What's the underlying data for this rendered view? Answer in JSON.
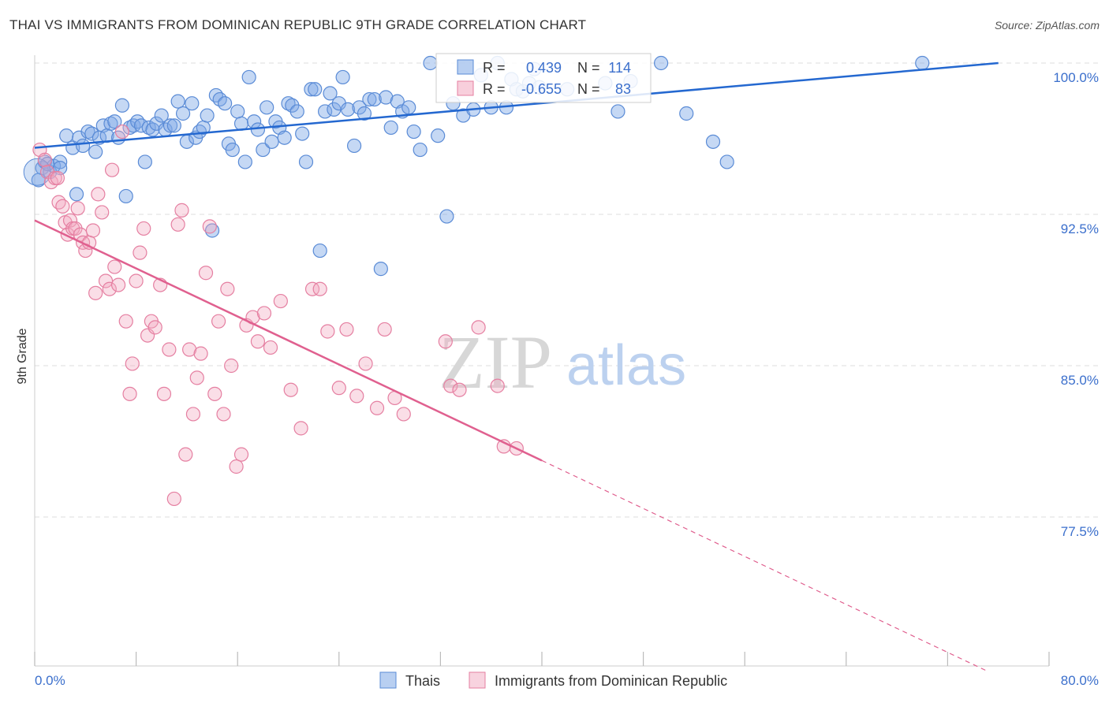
{
  "title": "THAI VS IMMIGRANTS FROM DOMINICAN REPUBLIC 9TH GRADE CORRELATION CHART",
  "source": "Source: ZipAtlas.com",
  "watermark": {
    "zip": "ZIP",
    "atlas": "atlas"
  },
  "colors": {
    "blue": "#7ea8e6",
    "blue_stroke": "#5a8bd6",
    "blue_line": "#2468d0",
    "pink": "#f2a7bf",
    "pink_stroke": "#e57fa1",
    "pink_line": "#e0608f",
    "grid": "#dddddd",
    "axis_text": "#3b6fcc"
  },
  "legend": {
    "rows": [
      {
        "series": "Thais",
        "r_label": "R =",
        "r_value": "0.439",
        "n_label": "N =",
        "n_value": "114"
      },
      {
        "series": "Immigrants from Dominican Republic",
        "r_label": "R =",
        "r_value": "-0.655",
        "n_label": "N =",
        "n_value": "83"
      }
    ]
  },
  "chart_data": {
    "type": "scatter",
    "title": "THAI VS IMMIGRANTS FROM DOMINICAN REPUBLIC 9TH GRADE CORRELATION CHART",
    "xlabel": "",
    "ylabel": "9th Grade",
    "xlim": [
      0,
      80
    ],
    "ylim": [
      70,
      101
    ],
    "x_tick_labels": [
      "0.0%",
      "80.0%"
    ],
    "y_ticks": [
      77.5,
      85.0,
      92.5,
      100.0
    ],
    "y_tick_labels": [
      "77.5%",
      "85.0%",
      "92.5%",
      "100.0%"
    ],
    "grid": true,
    "legend_position": "top-center",
    "series": [
      {
        "name": "Thais",
        "trend": {
          "x": [
            0,
            76
          ],
          "y": [
            95.8,
            100.0
          ]
        },
        "points": [
          [
            0.3,
            94.2
          ],
          [
            0.6,
            94.8
          ],
          [
            0.8,
            95.1
          ],
          [
            1.2,
            94.6
          ],
          [
            1.5,
            94.9
          ],
          [
            2.0,
            95.1
          ],
          [
            2.5,
            96.4
          ],
          [
            3.0,
            95.8
          ],
          [
            3.3,
            93.5
          ],
          [
            3.5,
            96.3
          ],
          [
            3.8,
            95.9
          ],
          [
            4.2,
            96.6
          ],
          [
            4.5,
            96.5
          ],
          [
            4.8,
            95.6
          ],
          [
            5.1,
            96.3
          ],
          [
            5.4,
            96.9
          ],
          [
            5.7,
            96.4
          ],
          [
            6.0,
            97.0
          ],
          [
            6.3,
            97.1
          ],
          [
            6.6,
            96.3
          ],
          [
            6.9,
            97.9
          ],
          [
            7.2,
            93.4
          ],
          [
            7.5,
            96.8
          ],
          [
            7.8,
            96.9
          ],
          [
            8.1,
            97.1
          ],
          [
            8.4,
            96.9
          ],
          [
            8.7,
            95.1
          ],
          [
            9.0,
            96.8
          ],
          [
            9.3,
            96.7
          ],
          [
            9.6,
            97.0
          ],
          [
            10.0,
            97.4
          ],
          [
            10.3,
            96.7
          ],
          [
            10.7,
            96.9
          ],
          [
            11.0,
            96.9
          ],
          [
            11.3,
            98.1
          ],
          [
            11.7,
            97.5
          ],
          [
            12.0,
            96.1
          ],
          [
            12.4,
            98.0
          ],
          [
            12.7,
            96.3
          ],
          [
            13.0,
            96.6
          ],
          [
            13.3,
            96.8
          ],
          [
            13.6,
            97.4
          ],
          [
            14.0,
            91.7
          ],
          [
            14.3,
            98.4
          ],
          [
            14.6,
            98.2
          ],
          [
            15.0,
            98.0
          ],
          [
            15.3,
            96.0
          ],
          [
            15.6,
            95.7
          ],
          [
            16.0,
            97.6
          ],
          [
            16.3,
            97.0
          ],
          [
            16.6,
            95.1
          ],
          [
            16.9,
            99.3
          ],
          [
            17.3,
            97.1
          ],
          [
            17.6,
            96.7
          ],
          [
            18.0,
            95.7
          ],
          [
            18.3,
            97.8
          ],
          [
            18.7,
            96.1
          ],
          [
            19.0,
            97.1
          ],
          [
            19.3,
            96.8
          ],
          [
            19.7,
            96.3
          ],
          [
            20.0,
            98.0
          ],
          [
            20.3,
            97.9
          ],
          [
            20.7,
            97.6
          ],
          [
            21.1,
            96.5
          ],
          [
            21.4,
            95.1
          ],
          [
            21.8,
            98.7
          ],
          [
            22.1,
            98.7
          ],
          [
            22.5,
            90.7
          ],
          [
            22.9,
            97.6
          ],
          [
            23.3,
            98.5
          ],
          [
            23.6,
            97.7
          ],
          [
            24.0,
            98.0
          ],
          [
            24.3,
            99.3
          ],
          [
            24.7,
            97.7
          ],
          [
            25.2,
            95.9
          ],
          [
            25.6,
            97.8
          ],
          [
            26.0,
            97.5
          ],
          [
            26.4,
            98.2
          ],
          [
            26.8,
            98.2
          ],
          [
            27.3,
            89.8
          ],
          [
            27.7,
            98.3
          ],
          [
            28.1,
            96.8
          ],
          [
            28.6,
            98.1
          ],
          [
            29.0,
            97.6
          ],
          [
            29.5,
            97.8
          ],
          [
            29.9,
            96.6
          ],
          [
            30.4,
            95.7
          ],
          [
            31.2,
            100.0
          ],
          [
            31.8,
            96.4
          ],
          [
            32.5,
            92.4
          ],
          [
            33.0,
            98.0
          ],
          [
            33.8,
            97.4
          ],
          [
            34.6,
            97.7
          ],
          [
            35.2,
            99.4
          ],
          [
            36.0,
            97.8
          ],
          [
            36.5,
            100.0
          ],
          [
            37.2,
            97.8
          ],
          [
            37.6,
            99.2
          ],
          [
            38.0,
            98.7
          ],
          [
            38.5,
            98.6
          ],
          [
            39.0,
            99.0
          ],
          [
            39.4,
            99.7
          ],
          [
            39.8,
            98.8
          ],
          [
            42.0,
            98.7
          ],
          [
            45.0,
            99.0
          ],
          [
            46.0,
            97.6
          ],
          [
            47.0,
            99.1
          ],
          [
            49.4,
            100.0
          ],
          [
            51.4,
            97.5
          ],
          [
            53.5,
            96.1
          ],
          [
            54.6,
            95.1
          ],
          [
            70.0,
            100.0
          ],
          [
            1.0,
            95.0
          ],
          [
            2.0,
            94.8
          ]
        ]
      },
      {
        "name": "Immigrants from Dominican Republic",
        "trend": {
          "x": [
            0,
            40
          ],
          "y": [
            92.2,
            80.3
          ],
          "dashed_to": [
            75,
            69.9
          ]
        },
        "points": [
          [
            0.4,
            95.7
          ],
          [
            0.8,
            95.2
          ],
          [
            1.0,
            94.6
          ],
          [
            1.3,
            94.1
          ],
          [
            1.6,
            94.3
          ],
          [
            1.8,
            94.3
          ],
          [
            1.9,
            93.1
          ],
          [
            2.2,
            92.9
          ],
          [
            2.4,
            92.1
          ],
          [
            2.6,
            91.5
          ],
          [
            2.8,
            92.2
          ],
          [
            3.0,
            91.8
          ],
          [
            3.2,
            91.8
          ],
          [
            3.4,
            92.8
          ],
          [
            3.6,
            91.5
          ],
          [
            3.8,
            91.1
          ],
          [
            4.0,
            90.7
          ],
          [
            4.3,
            91.1
          ],
          [
            4.6,
            91.7
          ],
          [
            4.8,
            88.6
          ],
          [
            5.0,
            93.5
          ],
          [
            5.3,
            92.6
          ],
          [
            5.6,
            89.2
          ],
          [
            5.9,
            88.8
          ],
          [
            6.1,
            94.7
          ],
          [
            6.3,
            89.9
          ],
          [
            6.6,
            89.0
          ],
          [
            6.9,
            96.6
          ],
          [
            7.2,
            87.2
          ],
          [
            7.5,
            83.6
          ],
          [
            7.7,
            85.1
          ],
          [
            8.0,
            89.2
          ],
          [
            8.3,
            90.6
          ],
          [
            8.6,
            91.8
          ],
          [
            8.9,
            86.5
          ],
          [
            9.2,
            87.2
          ],
          [
            9.5,
            86.9
          ],
          [
            9.9,
            89.0
          ],
          [
            10.2,
            83.6
          ],
          [
            10.6,
            85.8
          ],
          [
            11.0,
            78.4
          ],
          [
            11.3,
            92.0
          ],
          [
            11.6,
            92.7
          ],
          [
            11.9,
            80.6
          ],
          [
            12.2,
            85.8
          ],
          [
            12.5,
            82.6
          ],
          [
            12.8,
            84.4
          ],
          [
            13.1,
            85.6
          ],
          [
            13.5,
            89.6
          ],
          [
            13.8,
            91.9
          ],
          [
            14.2,
            83.6
          ],
          [
            14.5,
            87.2
          ],
          [
            14.9,
            82.6
          ],
          [
            15.2,
            88.8
          ],
          [
            15.5,
            85.0
          ],
          [
            15.9,
            80.0
          ],
          [
            16.3,
            80.6
          ],
          [
            16.7,
            87.0
          ],
          [
            17.2,
            87.4
          ],
          [
            17.6,
            86.2
          ],
          [
            18.1,
            87.6
          ],
          [
            18.6,
            85.9
          ],
          [
            19.4,
            88.2
          ],
          [
            20.2,
            83.8
          ],
          [
            21.0,
            81.9
          ],
          [
            21.9,
            88.8
          ],
          [
            22.5,
            88.8
          ],
          [
            23.1,
            86.7
          ],
          [
            24.0,
            83.9
          ],
          [
            24.6,
            86.8
          ],
          [
            25.4,
            83.5
          ],
          [
            26.1,
            85.1
          ],
          [
            27.0,
            82.9
          ],
          [
            27.6,
            86.8
          ],
          [
            28.4,
            83.4
          ],
          [
            29.1,
            82.6
          ],
          [
            32.4,
            86.2
          ],
          [
            32.8,
            84.0
          ],
          [
            33.5,
            83.8
          ],
          [
            35.0,
            86.9
          ],
          [
            36.5,
            84.0
          ],
          [
            37.0,
            81.0
          ],
          [
            38.0,
            80.9
          ]
        ]
      }
    ]
  },
  "bottom_legend": [
    {
      "label": "Thais"
    },
    {
      "label": "Immigrants from Dominican Republic"
    }
  ]
}
